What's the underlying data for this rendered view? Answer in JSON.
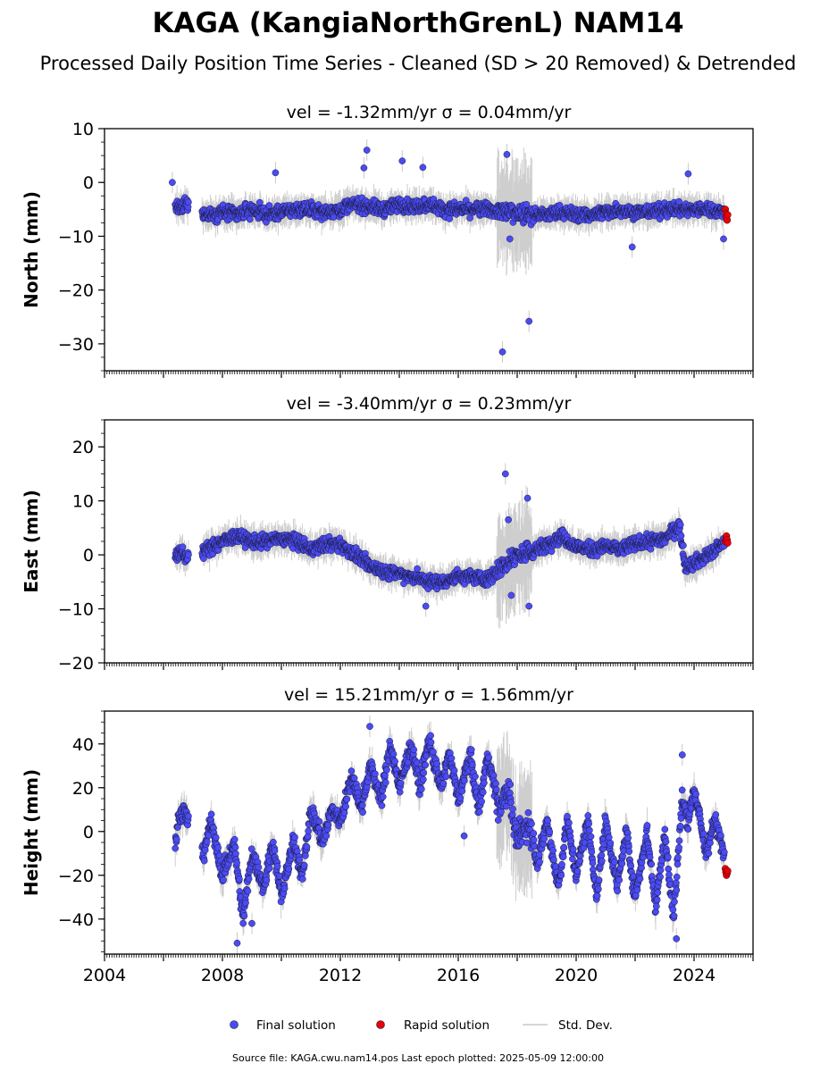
{
  "chart_data": {
    "type": "scatter",
    "title": "KAGA (KangiaNorthGrenL) NAM14",
    "subtitle": "Processed Daily Position Time Series - Cleaned (SD > 20 Removed) & Detrended",
    "x_ticks": [
      2004,
      2008,
      2012,
      2016,
      2020,
      2024
    ],
    "xlim": [
      2004.0,
      2026.0
    ],
    "legend": {
      "position": "bottom-center",
      "entries": [
        {
          "label": "Final solution",
          "color": "#4b4bf5"
        },
        {
          "label": "Rapid solution",
          "color": "#e8000b"
        },
        {
          "label": "Std. Dev.",
          "color": "#c8c8c8"
        }
      ]
    },
    "footer": "Source file: KAGA.cwu.nam14.pos  Last epoch plotted: 2025-05-09 12:00:00",
    "panels": [
      {
        "name": "north",
        "subplot_title": "vel = -1.32mm/yr   σ = 0.04mm/yr",
        "ylabel": "North (mm)",
        "ylim": [
          -35,
          10
        ],
        "y_ticks": [
          10,
          0,
          -10,
          -20,
          -30
        ],
        "y_tick_labels": [
          "10",
          "0",
          "−10",
          "−20",
          "−30"
        ],
        "final_solution": {
          "x": [
            2006.4,
            2006.6,
            2006.75,
            2007.5,
            2008.0,
            2008.5,
            2009.0,
            2009.5,
            2010.0,
            2010.5,
            2011.0,
            2011.5,
            2012.0,
            2012.5,
            2013.0,
            2013.5,
            2014.0,
            2014.5,
            2015.0,
            2015.5,
            2016.0,
            2016.5,
            2017.0,
            2017.5,
            2018.0,
            2018.5,
            2019.0,
            2019.5,
            2020.0,
            2020.5,
            2021.0,
            2021.5,
            2022.0,
            2022.5,
            2023.0,
            2023.5,
            2024.0,
            2024.5,
            2025.0
          ],
          "y": [
            -4.5,
            -5.0,
            -4.0,
            -6.0,
            -5.5,
            -6.0,
            -5.0,
            -6.0,
            -5.5,
            -5.0,
            -5.0,
            -5.5,
            -5.0,
            -4.0,
            -4.5,
            -5.0,
            -4.0,
            -4.5,
            -4.0,
            -5.0,
            -5.0,
            -5.0,
            -5.0,
            -5.5,
            -5.5,
            -6.0,
            -6.0,
            -5.5,
            -6.0,
            -6.0,
            -5.5,
            -5.0,
            -5.5,
            -5.5,
            -5.0,
            -5.0,
            -5.0,
            -5.0,
            -5.5
          ],
          "outliers": [
            {
              "x": 2006.3,
              "y": 0
            },
            {
              "x": 2009.8,
              "y": 1.8
            },
            {
              "x": 2012.9,
              "y": 6.0
            },
            {
              "x": 2012.8,
              "y": 2.7
            },
            {
              "x": 2014.1,
              "y": 4.0
            },
            {
              "x": 2014.8,
              "y": 2.8
            },
            {
              "x": 2017.65,
              "y": 5.2
            },
            {
              "x": 2017.5,
              "y": -31.5
            },
            {
              "x": 2018.4,
              "y": -25.8
            },
            {
              "x": 2017.75,
              "y": -10.5
            },
            {
              "x": 2021.9,
              "y": -12.0
            },
            {
              "x": 2023.8,
              "y": 1.6
            },
            {
              "x": 2025.0,
              "y": -10.5
            }
          ]
        },
        "rapid_solution": {
          "x": [
            2025.06,
            2025.08,
            2025.1,
            2025.12,
            2025.14
          ],
          "y": [
            -5.0,
            -5.8,
            -6.5,
            -7.0,
            -6.0
          ]
        }
      },
      {
        "name": "east",
        "subplot_title": "vel = -3.40mm/yr   σ = 0.23mm/yr",
        "ylabel": "East (mm)",
        "ylim": [
          -20,
          25
        ],
        "y_ticks": [
          20,
          10,
          0,
          -10,
          -20
        ],
        "y_tick_labels": [
          "20",
          "10",
          "0",
          "−10",
          "−20"
        ],
        "final_solution": {
          "x": [
            2006.4,
            2006.6,
            2006.75,
            2007.5,
            2008.0,
            2008.5,
            2009.0,
            2009.5,
            2010.0,
            2010.5,
            2011.0,
            2011.5,
            2012.0,
            2012.5,
            2013.0,
            2013.5,
            2014.0,
            2014.5,
            2015.0,
            2015.5,
            2016.0,
            2016.5,
            2017.0,
            2017.5,
            2018.0,
            2018.5,
            2019.0,
            2019.5,
            2020.0,
            2020.5,
            2021.0,
            2021.5,
            2022.0,
            2022.5,
            2023.0,
            2023.5,
            2023.7,
            2024.0,
            2024.5,
            2025.0
          ],
          "y": [
            0.0,
            0.5,
            -0.5,
            1.0,
            2.5,
            3.5,
            2.5,
            2.5,
            3.0,
            2.5,
            1.0,
            2.0,
            2.0,
            0.0,
            -2.0,
            -3.0,
            -3.5,
            -4.0,
            -5.0,
            -5.0,
            -4.0,
            -4.0,
            -4.5,
            -2.0,
            0.0,
            0.5,
            2.0,
            3.5,
            1.5,
            1.0,
            1.5,
            1.0,
            2.0,
            2.5,
            3.0,
            5.5,
            -2.0,
            -1.5,
            0.0,
            2.0
          ],
          "outliers": [
            {
              "x": 2017.6,
              "y": 15.0
            },
            {
              "x": 2018.35,
              "y": 10.5
            },
            {
              "x": 2017.7,
              "y": 6.5
            },
            {
              "x": 2017.8,
              "y": -7.5
            },
            {
              "x": 2018.4,
              "y": -9.5
            },
            {
              "x": 2014.9,
              "y": -9.5
            }
          ]
        },
        "rapid_solution": {
          "x": [
            2025.06,
            2025.08,
            2025.1,
            2025.12,
            2025.14
          ],
          "y": [
            2.5,
            3.0,
            3.5,
            2.8,
            2.2
          ]
        }
      },
      {
        "name": "height",
        "subplot_title": "vel = 15.21mm/yr   σ = 1.56mm/yr",
        "ylabel": "Height (mm)",
        "ylim": [
          -56,
          55
        ],
        "y_ticks": [
          40,
          20,
          0,
          -20,
          -40
        ],
        "y_tick_labels": [
          "40",
          "20",
          "0",
          "−20",
          "−40"
        ],
        "final_solution": {
          "x": [
            2006.4,
            2006.5,
            2006.7,
            2007.4,
            2007.6,
            2008.0,
            2008.4,
            2008.7,
            2009.0,
            2009.4,
            2009.7,
            2010.0,
            2010.4,
            2010.7,
            2011.0,
            2011.4,
            2011.7,
            2012.0,
            2012.4,
            2012.7,
            2013.0,
            2013.4,
            2013.7,
            2014.0,
            2014.4,
            2014.7,
            2015.0,
            2015.4,
            2015.7,
            2016.0,
            2016.4,
            2016.7,
            2017.0,
            2017.4,
            2017.7,
            2018.0,
            2018.4,
            2018.7,
            2019.0,
            2019.4,
            2019.7,
            2020.0,
            2020.4,
            2020.7,
            2021.0,
            2021.4,
            2021.7,
            2022.0,
            2022.4,
            2022.7,
            2023.0,
            2023.3,
            2023.6,
            2023.8,
            2024.0,
            2024.4,
            2024.7,
            2025.0
          ],
          "y": [
            -5,
            5,
            10,
            -10,
            5,
            -20,
            -5,
            -40,
            -10,
            -25,
            -5,
            -30,
            -5,
            -20,
            10,
            -5,
            10,
            5,
            25,
            10,
            30,
            15,
            40,
            20,
            40,
            20,
            42,
            20,
            35,
            15,
            35,
            10,
            35,
            10,
            20,
            -5,
            5,
            -15,
            5,
            -25,
            5,
            -20,
            5,
            -30,
            5,
            -25,
            0,
            -30,
            0,
            -35,
            0,
            -40,
            15,
            5,
            20,
            -10,
            5,
            -10
          ],
          "outliers": [
            {
              "x": 2008.5,
              "y": -51.0
            },
            {
              "x": 2009.0,
              "y": -42.0
            },
            {
              "x": 2023.4,
              "y": -49.0
            },
            {
              "x": 2023.6,
              "y": 35.0
            },
            {
              "x": 2016.2,
              "y": -2.0
            },
            {
              "x": 2013.0,
              "y": 48.0
            }
          ]
        },
        "rapid_solution": {
          "x": [
            2025.06,
            2025.08,
            2025.1,
            2025.12,
            2025.14
          ],
          "y": [
            -17.0,
            -18.5,
            -20.0,
            -19.0,
            -18.0
          ]
        }
      }
    ]
  }
}
